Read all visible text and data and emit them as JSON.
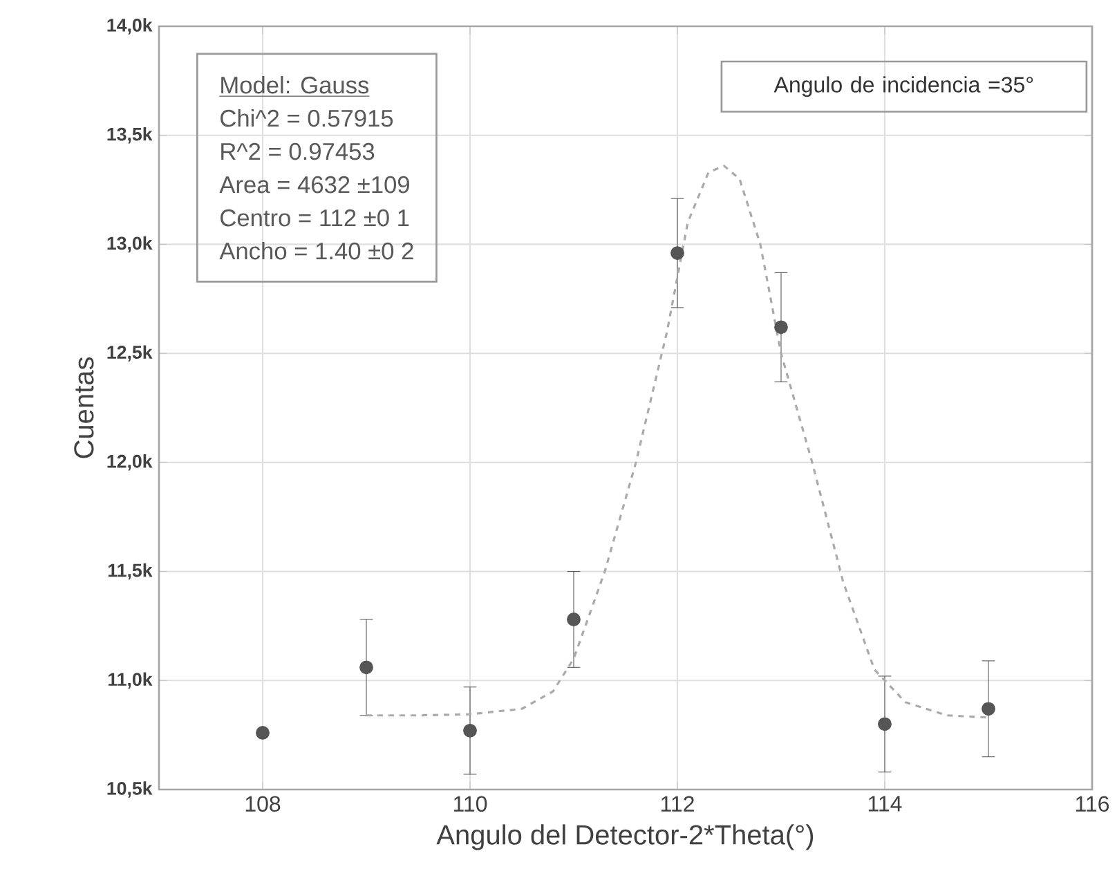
{
  "chart_data": {
    "type": "scatter",
    "xlabel": "Angulo del Detector-2*Theta(°)",
    "ylabel": "Cuentas",
    "annotations": [
      "Model: Gauss",
      "Chi^2   =  0.57915",
      "R^2     =  0.97453",
      "Area =  4632 ±109",
      "Centro = 112 ±0 1",
      "Ancho = 1.40 ±0 2",
      "Angulo de incidencia =35°"
    ],
    "xlim": [
      107,
      116
    ],
    "xticks": [
      108,
      110,
      112,
      114,
      116
    ],
    "ylim": [
      10500,
      14000
    ],
    "yticks": [
      {
        "value": 10500,
        "label": "10,5k"
      },
      {
        "value": 11000,
        "label": "11,0k"
      },
      {
        "value": 11500,
        "label": "11,5k"
      },
      {
        "value": 12000,
        "label": "12,0k"
      },
      {
        "value": 12500,
        "label": "12,5k"
      },
      {
        "value": 13000,
        "label": "13,0k"
      },
      {
        "value": 13500,
        "label": "13,5k"
      },
      {
        "value": 14000,
        "label": "14,0k"
      }
    ],
    "grid": true,
    "series": [
      {
        "color": "#555555",
        "marker": "circle",
        "x": [
          108,
          109,
          110,
          111,
          112,
          113,
          114,
          115
        ],
        "values": [
          10760,
          11060,
          10770,
          11280,
          12960,
          12620,
          10800,
          10870
        ],
        "errors": [
          null,
          220,
          200,
          220,
          250,
          250,
          220,
          220
        ]
      },
      {
        "type": "line",
        "color": "#aaaaaa",
        "marker": "none",
        "line_style": "dashed",
        "x": [
          109,
          109.5,
          110,
          110.5,
          110.8,
          111,
          111.3,
          111.6,
          111.9,
          112.1,
          112.3,
          112.45,
          112.6,
          112.8,
          113,
          113.3,
          113.6,
          113.9,
          114.2,
          114.6,
          115
        ],
        "values": [
          10840,
          10840,
          10845,
          10870,
          10950,
          11100,
          11500,
          12000,
          12600,
          13100,
          13330,
          13360,
          13300,
          13000,
          12500,
          12000,
          11450,
          11050,
          10900,
          10840,
          10830
        ]
      }
    ]
  }
}
